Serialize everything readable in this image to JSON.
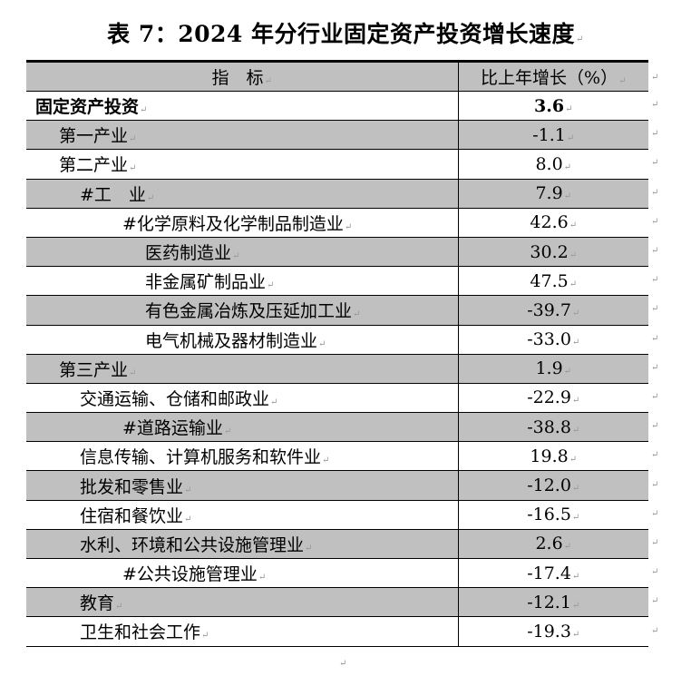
{
  "title": "表 7：2024 年分行业固定资产投资增长速度",
  "paragraph_mark": "↵",
  "table": {
    "headers": [
      "指　标",
      "比上年增长（%）"
    ],
    "rows": [
      {
        "label": "固定资产投资",
        "value": "3.6",
        "level": 0,
        "bold": true
      },
      {
        "label": "第一产业",
        "value": "-1.1",
        "level": 1
      },
      {
        "label": "第二产业",
        "value": "8.0",
        "level": 1
      },
      {
        "label": "#工　业",
        "value": "7.9",
        "level": 2
      },
      {
        "label": "#化学原料及化学制品制造业",
        "value": "42.6",
        "level": 3
      },
      {
        "label": "医药制造业",
        "value": "30.2",
        "level": 4
      },
      {
        "label": "非金属矿制品业",
        "value": "47.5",
        "level": 4
      },
      {
        "label": "有色金属冶炼及压延加工业",
        "value": "-39.7",
        "level": 4
      },
      {
        "label": "电气机械及器材制造业",
        "value": "-33.0",
        "level": 4
      },
      {
        "label": "第三产业",
        "value": "1.9",
        "level": 1
      },
      {
        "label": "交通运输、仓储和邮政业",
        "value": "-22.9",
        "level": 2
      },
      {
        "label": "#道路运输业",
        "value": "-38.8",
        "level": 3
      },
      {
        "label": "信息传输、计算机服务和软件业",
        "value": "19.8",
        "level": 2
      },
      {
        "label": "批发和零售业",
        "value": "-12.0",
        "level": 2
      },
      {
        "label": "住宿和餐饮业",
        "value": "-16.5",
        "level": 2
      },
      {
        "label": "水利、环境和公共设施管理业",
        "value": "2.6",
        "level": 2
      },
      {
        "label": "#公共设施管理业",
        "value": "-17.4",
        "level": 3
      },
      {
        "label": "教育",
        "value": "-12.1",
        "level": 2
      },
      {
        "label": "卫生和社会工作",
        "value": "-19.3",
        "level": 2
      }
    ]
  },
  "colors": {
    "shade": "#c0c0c0"
  }
}
